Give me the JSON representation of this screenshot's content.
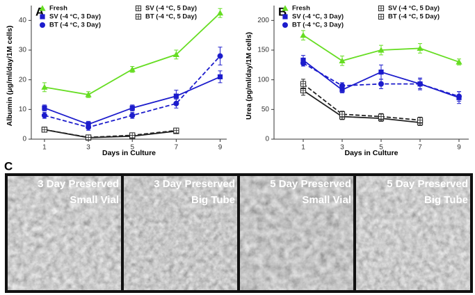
{
  "chart_data": [
    {
      "type": "line",
      "panel_label": "A",
      "ylabel": "Albumin (μg/ml/day/1M cells)",
      "xlabel": "Days in Culture",
      "x": [
        1,
        3,
        5,
        7,
        9
      ],
      "xlim": [
        0.4,
        9.3
      ],
      "xticks": [
        1,
        3,
        5,
        7,
        9
      ],
      "ylim": [
        0,
        45
      ],
      "yticks": [
        0,
        10,
        20,
        30,
        40
      ],
      "grid": false,
      "series": [
        {
          "name": "Fresh",
          "color": "#66dd22",
          "marker": "triangle",
          "dashed": false,
          "values": [
            17.5,
            15,
            23.5,
            28.5,
            42.5
          ],
          "errors": [
            1.5,
            1,
            1,
            1.5,
            1.5
          ]
        },
        {
          "name": "SV (-4 °C, 3 Day)",
          "color": "#1c1ccc",
          "marker": "square",
          "dashed": false,
          "values": [
            10.5,
            5,
            10.5,
            14.5,
            21
          ],
          "errors": [
            1,
            1,
            1,
            2,
            2
          ]
        },
        {
          "name": "BT (-4 °C, 3 Day)",
          "color": "#1c1ccc",
          "marker": "circle",
          "dashed": true,
          "values": [
            8,
            4,
            8,
            12,
            28
          ],
          "errors": [
            1,
            1,
            1,
            1.5,
            3
          ]
        },
        {
          "name": "SV (-4 °C, 5 Day)",
          "color": "#222222",
          "marker": "open-square",
          "dashed": false,
          "values": [
            3.2,
            0.5,
            1,
            2.7,
            null
          ],
          "errors": [
            0.5,
            0.3,
            0.4,
            0.5,
            null
          ]
        },
        {
          "name": "BT (-4 °C, 5 Day)",
          "color": "#222222",
          "marker": "open-square",
          "dashed": true,
          "values": [
            3.2,
            0.6,
            1.3,
            2.9,
            null
          ],
          "errors": [
            0.5,
            0.3,
            0.4,
            0.5,
            null
          ]
        }
      ]
    },
    {
      "type": "line",
      "panel_label": "B",
      "ylabel": "Urea (pg/ml/day/1M cells)",
      "xlabel": "Days in Culture",
      "x": [
        1,
        3,
        5,
        7,
        9
      ],
      "xlim": [
        -0.5,
        9.5
      ],
      "xticks": [
        1,
        3,
        5,
        7,
        9
      ],
      "ylim": [
        0,
        225
      ],
      "yticks": [
        0,
        50,
        100,
        150,
        200
      ],
      "grid": false,
      "series": [
        {
          "name": "Fresh",
          "color": "#66dd22",
          "marker": "triangle",
          "dashed": false,
          "values": [
            175,
            132,
            150,
            153,
            130
          ],
          "errors": [
            8,
            8,
            8,
            8,
            5
          ]
        },
        {
          "name": "SV (-4 °C, 3 Day)",
          "color": "#1c1ccc",
          "marker": "square",
          "dashed": false,
          "values": [
            133,
            83,
            113,
            93,
            70
          ],
          "errors": [
            8,
            5,
            12,
            10,
            10
          ]
        },
        {
          "name": "BT (-4 °C, 3 Day)",
          "color": "#1c1ccc",
          "marker": "circle",
          "dashed": true,
          "values": [
            128,
            90,
            93,
            93,
            72
          ],
          "errors": [
            5,
            5,
            8,
            8,
            8
          ]
        },
        {
          "name": "SV (-4 °C, 5 Day)",
          "color": "#222222",
          "marker": "open-square",
          "dashed": false,
          "values": [
            82,
            38,
            35,
            28,
            null
          ],
          "errors": [
            8,
            5,
            5,
            5,
            null
          ]
        },
        {
          "name": "BT (-4 °C, 5 Day)",
          "color": "#222222",
          "marker": "open-square",
          "dashed": true,
          "values": [
            93,
            42,
            38,
            32,
            null
          ],
          "errors": [
            8,
            5,
            5,
            5,
            null
          ]
        }
      ]
    }
  ],
  "panel_c": {
    "label": "C",
    "images": [
      {
        "line1": "3 Day Preserved",
        "line2": "Small Vial"
      },
      {
        "line1": "3 Day Preserved",
        "line2": "Big Tube"
      },
      {
        "line1": "5 Day Preserved",
        "line2": "Small Vial"
      },
      {
        "line1": "5 Day Preserved",
        "line2": "Big Tube"
      }
    ]
  }
}
